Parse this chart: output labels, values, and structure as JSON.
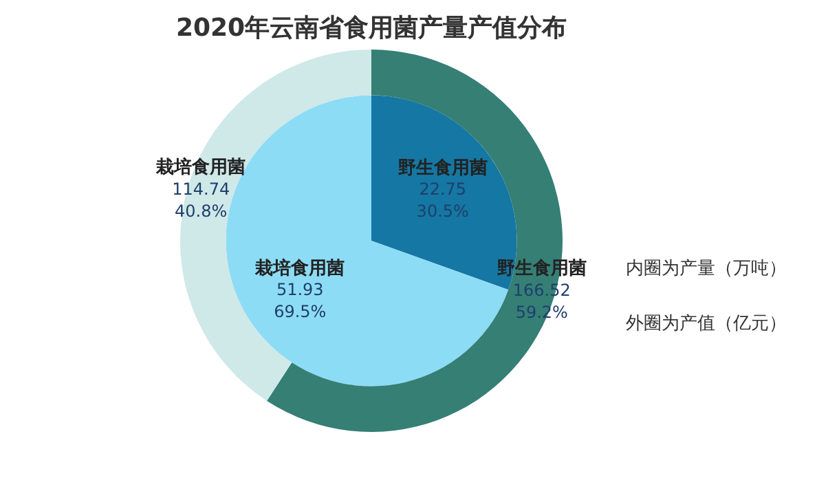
{
  "chart_data": {
    "type": "donut",
    "title": "2020年云南省食用菌产量产值分布",
    "categories": [
      "野生食用菌",
      "栽培食用菌"
    ],
    "series": [
      {
        "values": [
          166.52,
          114.74
        ],
        "colors": [
          "#357f75",
          "#cfe8e8"
        ],
        "value_labels": [
          "166.52\n59.2%",
          "114.74\n40.8%"
        ]
      },
      {
        "values": [
          22.75,
          51.93
        ],
        "colors": [
          "#1577a3",
          "#8ddcf6"
        ],
        "value_labels": [
          "22.75\n30.5%",
          "51.93\n69.5%"
        ]
      }
    ],
    "legend": false,
    "annotations": [
      "内圈为产量（万吨）",
      "外圈为产值（亿元）"
    ]
  }
}
